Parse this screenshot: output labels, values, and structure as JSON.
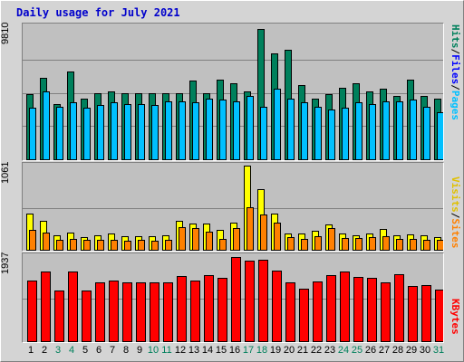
{
  "title": "Daily usage for July 2021",
  "colors": {
    "hits": "#00805c",
    "files": "#00c0ff",
    "pages": "#00c0ff",
    "visits": "#ffff00",
    "sites": "#ff8000",
    "kbytes": "#ff0000",
    "weekend": "#00805c",
    "weekday": "#000000",
    "gridline": "#808080"
  },
  "legend": {
    "hits_label": "Hits",
    "files_label": "Files",
    "pages_label": "Pages",
    "slash": "/",
    "visits_label": "Visits",
    "sites_label": "Sites",
    "kbytes_label": "KBytes"
  },
  "chart_data": [
    {
      "type": "bar",
      "panel": "hits-files-pages",
      "categories": [
        "1",
        "2",
        "3",
        "4",
        "5",
        "6",
        "7",
        "8",
        "9",
        "10",
        "11",
        "12",
        "13",
        "14",
        "15",
        "16",
        "17",
        "18",
        "19",
        "20",
        "21",
        "22",
        "23",
        "24",
        "25",
        "26",
        "27",
        "28",
        "29",
        "30",
        "31"
      ],
      "ymax_label": "9810",
      "ylim": [
        0,
        9810
      ],
      "series": [
        {
          "name": "Hits",
          "values": [
            4800,
            6000,
            4100,
            6500,
            4500,
            4900,
            5000,
            4900,
            4900,
            4900,
            4900,
            4900,
            5800,
            4900,
            5900,
            5600,
            5000,
            9600,
            7800,
            8100,
            5500,
            4500,
            4800,
            5300,
            5600,
            5000,
            5200,
            4700,
            5900,
            4700,
            4500
          ]
        },
        {
          "name": "Files",
          "values": [
            3800,
            5000,
            3900,
            4200,
            3800,
            4000,
            4200,
            4100,
            4100,
            4000,
            4300,
            4300,
            4200,
            4500,
            4400,
            4300,
            4700,
            3900,
            5200,
            4500,
            4200,
            3900,
            3700,
            3800,
            4200,
            4100,
            4300,
            4300,
            4400,
            3900,
            3500
          ]
        },
        {
          "name": "Pages",
          "values": [
            3800,
            5000,
            3900,
            4200,
            3800,
            4000,
            4200,
            4100,
            4100,
            4000,
            4300,
            4300,
            4200,
            4500,
            4400,
            4300,
            4700,
            3900,
            5200,
            4500,
            4200,
            3900,
            3700,
            3800,
            4200,
            4100,
            4300,
            4300,
            4400,
            3900,
            3500
          ]
        }
      ]
    },
    {
      "type": "bar",
      "panel": "visits-sites",
      "categories": [
        "1",
        "2",
        "3",
        "4",
        "5",
        "6",
        "7",
        "8",
        "9",
        "10",
        "11",
        "12",
        "13",
        "14",
        "15",
        "16",
        "17",
        "18",
        "19",
        "20",
        "21",
        "22",
        "23",
        "24",
        "25",
        "26",
        "27",
        "28",
        "29",
        "30",
        "31"
      ],
      "ymax_label": "1061",
      "ylim": [
        0,
        1061
      ],
      "series": [
        {
          "name": "Visits",
          "values": [
            460,
            370,
            180,
            220,
            160,
            180,
            200,
            170,
            170,
            170,
            180,
            360,
            330,
            330,
            250,
            340,
            1060,
            760,
            460,
            200,
            200,
            240,
            320,
            200,
            180,
            200,
            260,
            180,
            190,
            180,
            160
          ]
        },
        {
          "name": "Sites",
          "values": [
            250,
            220,
            120,
            140,
            120,
            120,
            120,
            110,
            120,
            110,
            120,
            280,
            270,
            230,
            140,
            270,
            540,
            450,
            340,
            160,
            140,
            170,
            270,
            150,
            150,
            160,
            170,
            140,
            140,
            130,
            120
          ]
        }
      ]
    },
    {
      "type": "bar",
      "panel": "kbytes",
      "categories": [
        "1",
        "2",
        "3",
        "4",
        "5",
        "6",
        "7",
        "8",
        "9",
        "10",
        "11",
        "12",
        "13",
        "14",
        "15",
        "16",
        "17",
        "18",
        "19",
        "20",
        "21",
        "22",
        "23",
        "24",
        "25",
        "26",
        "27",
        "28",
        "29",
        "30",
        "31"
      ],
      "ymax_label": "1937",
      "ylim": [
        0,
        1937
      ],
      "series": [
        {
          "name": "KBytes",
          "values": [
            1380,
            1580,
            1160,
            1590,
            1160,
            1340,
            1380,
            1330,
            1340,
            1340,
            1330,
            1480,
            1390,
            1510,
            1440,
            1920,
            1840,
            1860,
            1600,
            1340,
            1190,
            1360,
            1500,
            1580,
            1460,
            1440,
            1340,
            1530,
            1250,
            1270,
            1180
          ]
        }
      ]
    }
  ],
  "days": [
    {
      "label": "1",
      "weekend": false
    },
    {
      "label": "2",
      "weekend": false
    },
    {
      "label": "3",
      "weekend": true
    },
    {
      "label": "4",
      "weekend": true
    },
    {
      "label": "5",
      "weekend": false
    },
    {
      "label": "6",
      "weekend": false
    },
    {
      "label": "7",
      "weekend": false
    },
    {
      "label": "8",
      "weekend": false
    },
    {
      "label": "9",
      "weekend": false
    },
    {
      "label": "10",
      "weekend": true
    },
    {
      "label": "11",
      "weekend": true
    },
    {
      "label": "12",
      "weekend": false
    },
    {
      "label": "13",
      "weekend": false
    },
    {
      "label": "14",
      "weekend": false
    },
    {
      "label": "15",
      "weekend": false
    },
    {
      "label": "16",
      "weekend": false
    },
    {
      "label": "17",
      "weekend": true
    },
    {
      "label": "18",
      "weekend": true
    },
    {
      "label": "19",
      "weekend": false
    },
    {
      "label": "20",
      "weekend": false
    },
    {
      "label": "21",
      "weekend": false
    },
    {
      "label": "22",
      "weekend": false
    },
    {
      "label": "23",
      "weekend": false
    },
    {
      "label": "24",
      "weekend": true
    },
    {
      "label": "25",
      "weekend": true
    },
    {
      "label": "26",
      "weekend": false
    },
    {
      "label": "27",
      "weekend": false
    },
    {
      "label": "28",
      "weekend": false
    },
    {
      "label": "29",
      "weekend": false
    },
    {
      "label": "30",
      "weekend": false
    },
    {
      "label": "31",
      "weekend": true
    }
  ]
}
